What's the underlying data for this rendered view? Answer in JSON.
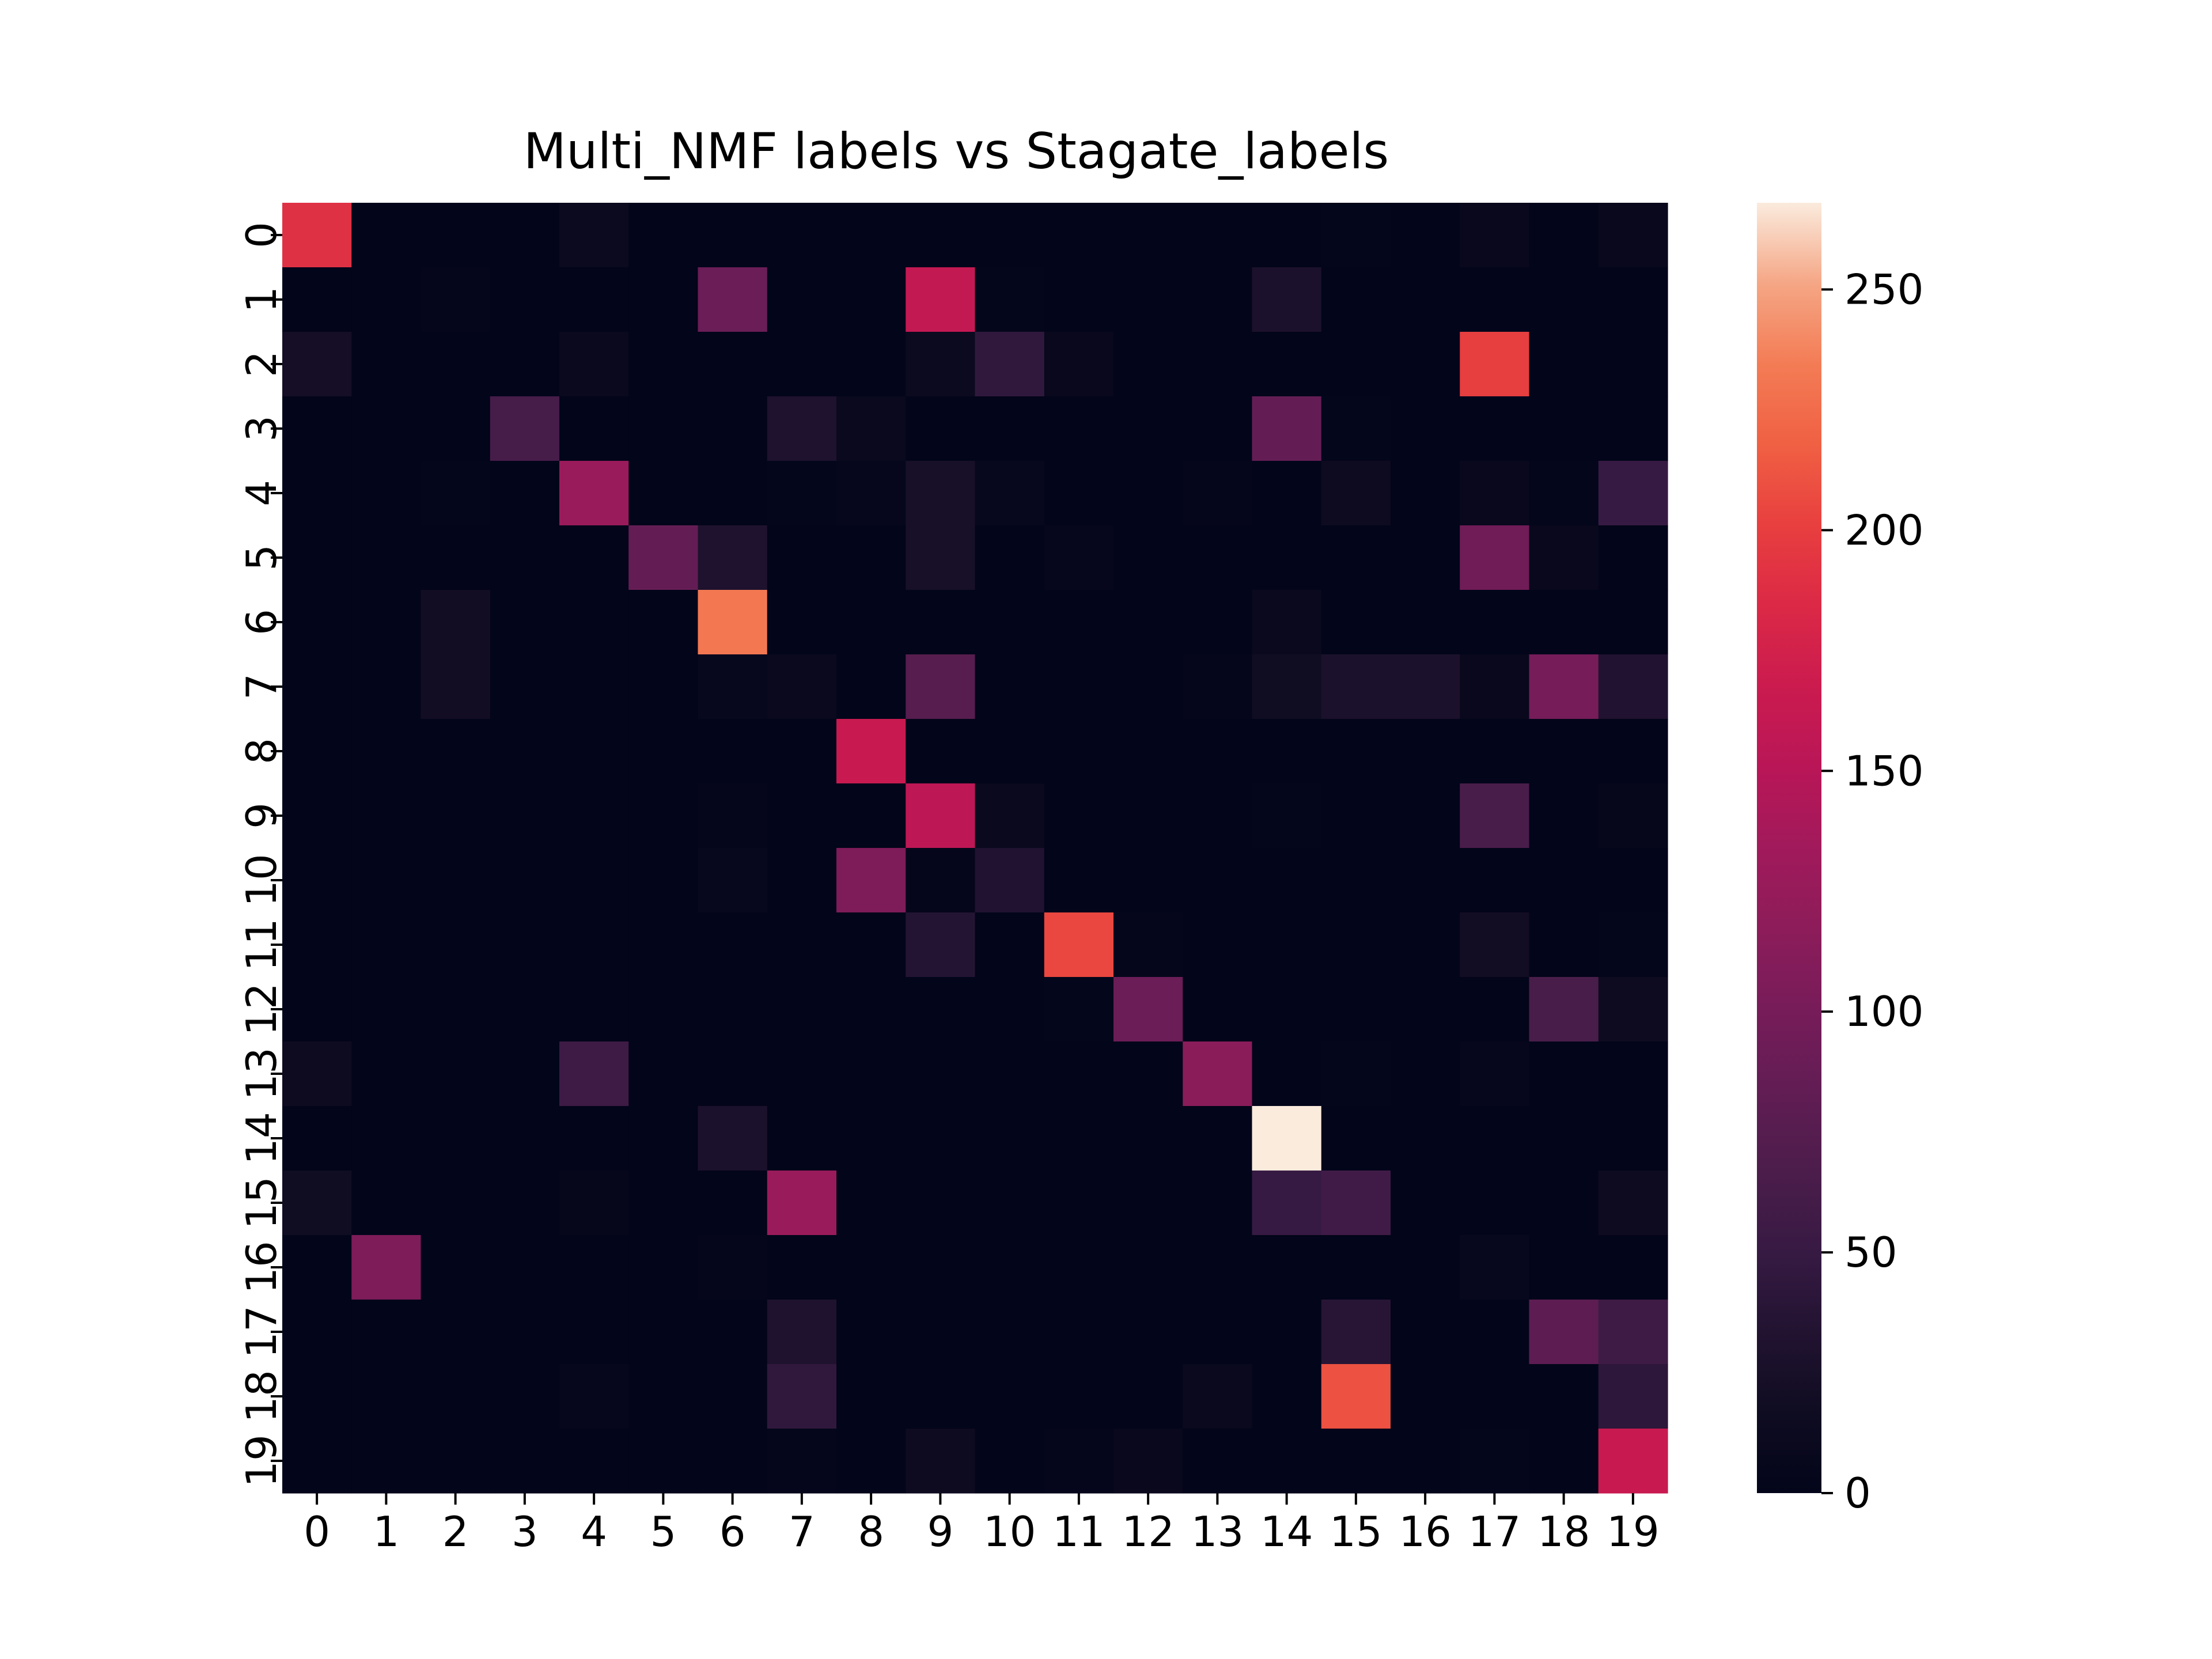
{
  "chart_data": {
    "type": "heatmap",
    "title": "Multi_NMF labels vs Stagate_labels",
    "xlabel": "",
    "ylabel": "",
    "x_categories": [
      "0",
      "1",
      "2",
      "3",
      "4",
      "5",
      "6",
      "7",
      "8",
      "9",
      "10",
      "11",
      "12",
      "13",
      "14",
      "15",
      "16",
      "17",
      "18",
      "19"
    ],
    "y_categories": [
      "0",
      "1",
      "2",
      "3",
      "4",
      "5",
      "6",
      "7",
      "8",
      "9",
      "10",
      "11",
      "12",
      "13",
      "14",
      "15",
      "16",
      "17",
      "18",
      "19"
    ],
    "colormap": "rocket",
    "vmin": 0,
    "vmax": 268,
    "colorbar_ticks": [
      0,
      50,
      100,
      150,
      200,
      250
    ],
    "colorbar_tick_labels": [
      "0",
      "50",
      "100",
      "150",
      "200",
      "250"
    ],
    "values": [
      [
        190,
        0,
        0,
        0,
        12,
        0,
        0,
        0,
        0,
        0,
        0,
        0,
        0,
        0,
        0,
        2,
        0,
        8,
        0,
        8
      ],
      [
        0,
        0,
        3,
        0,
        0,
        0,
        90,
        0,
        0,
        160,
        2,
        0,
        0,
        0,
        28,
        0,
        0,
        0,
        0,
        0
      ],
      [
        22,
        0,
        0,
        0,
        10,
        0,
        0,
        0,
        0,
        12,
        45,
        8,
        0,
        0,
        0,
        0,
        0,
        200,
        0,
        0
      ],
      [
        0,
        0,
        0,
        62,
        0,
        0,
        0,
        30,
        10,
        0,
        0,
        0,
        0,
        0,
        85,
        2,
        0,
        0,
        0,
        0
      ],
      [
        0,
        0,
        2,
        0,
        128,
        0,
        0,
        2,
        4,
        25,
        6,
        0,
        0,
        3,
        0,
        15,
        0,
        8,
        2,
        50
      ],
      [
        0,
        0,
        0,
        0,
        0,
        85,
        30,
        0,
        0,
        25,
        0,
        4,
        0,
        0,
        0,
        0,
        0,
        95,
        8,
        0
      ],
      [
        0,
        0,
        20,
        0,
        0,
        0,
        232,
        0,
        0,
        0,
        0,
        0,
        0,
        0,
        10,
        0,
        0,
        0,
        0,
        0
      ],
      [
        0,
        0,
        20,
        0,
        0,
        0,
        6,
        10,
        0,
        75,
        0,
        0,
        0,
        3,
        18,
        28,
        28,
        8,
        100,
        32
      ],
      [
        0,
        0,
        0,
        0,
        0,
        0,
        0,
        0,
        165,
        0,
        0,
        0,
        0,
        0,
        0,
        0,
        0,
        0,
        0,
        0
      ],
      [
        0,
        0,
        0,
        0,
        0,
        0,
        3,
        0,
        0,
        155,
        10,
        0,
        0,
        0,
        2,
        0,
        0,
        65,
        0,
        5
      ],
      [
        0,
        0,
        0,
        0,
        0,
        0,
        6,
        0,
        105,
        3,
        32,
        0,
        0,
        0,
        0,
        0,
        0,
        0,
        0,
        0
      ],
      [
        0,
        0,
        0,
        0,
        0,
        0,
        0,
        0,
        0,
        35,
        0,
        205,
        3,
        0,
        0,
        0,
        0,
        20,
        0,
        2
      ],
      [
        0,
        0,
        0,
        0,
        0,
        0,
        0,
        0,
        0,
        0,
        0,
        2,
        90,
        0,
        0,
        0,
        0,
        0,
        65,
        15
      ],
      [
        15,
        0,
        0,
        0,
        55,
        0,
        0,
        0,
        0,
        0,
        0,
        0,
        0,
        115,
        0,
        2,
        0,
        4,
        0,
        0
      ],
      [
        0,
        0,
        0,
        0,
        0,
        0,
        28,
        0,
        0,
        0,
        0,
        0,
        0,
        0,
        268,
        0,
        0,
        0,
        0,
        0
      ],
      [
        18,
        0,
        0,
        0,
        5,
        0,
        0,
        128,
        0,
        0,
        0,
        0,
        0,
        0,
        50,
        58,
        0,
        0,
        0,
        15
      ],
      [
        0,
        105,
        0,
        0,
        0,
        0,
        3,
        0,
        0,
        0,
        0,
        0,
        0,
        0,
        0,
        0,
        0,
        6,
        0,
        0
      ],
      [
        0,
        0,
        0,
        0,
        0,
        0,
        0,
        30,
        0,
        0,
        0,
        0,
        0,
        0,
        0,
        38,
        0,
        0,
        80,
        55
      ],
      [
        0,
        0,
        0,
        0,
        4,
        0,
        0,
        45,
        0,
        0,
        0,
        0,
        0,
        10,
        0,
        210,
        0,
        0,
        0,
        42
      ],
      [
        0,
        0,
        0,
        0,
        0,
        0,
        0,
        3,
        0,
        15,
        0,
        3,
        8,
        0,
        0,
        0,
        0,
        2,
        0,
        165
      ]
    ]
  }
}
